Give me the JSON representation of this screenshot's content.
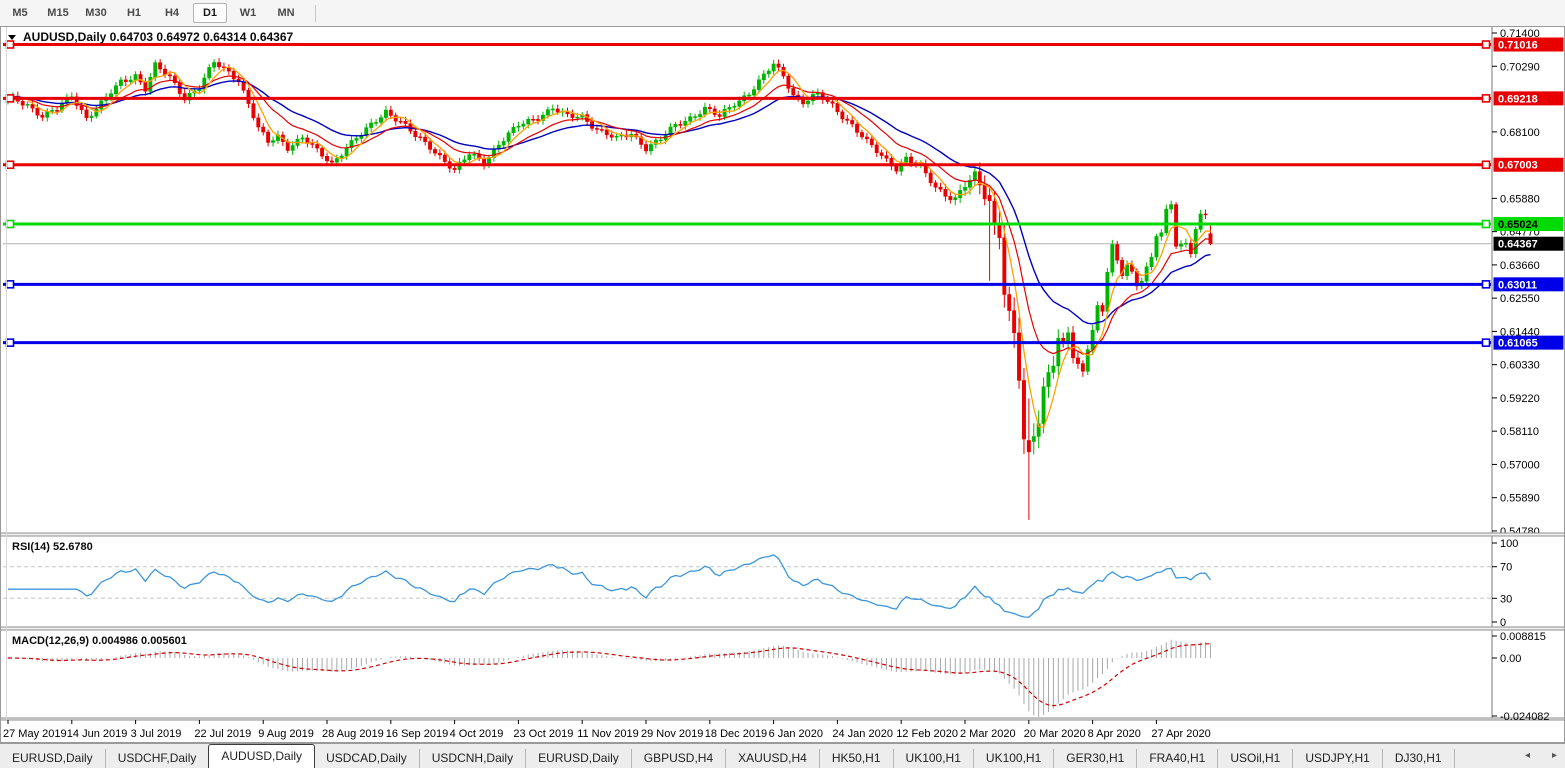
{
  "toolbar": {
    "timeframes": [
      "M5",
      "M15",
      "M30",
      "H1",
      "H4",
      "D1",
      "W1",
      "MN"
    ],
    "active_timeframe": "D1"
  },
  "chart": {
    "title_display": "AUDUSD,Daily  0.64703 0.64972 0.64314 0.64367",
    "symbol": "AUDUSD",
    "period": "Daily"
  },
  "chart_data": {
    "type": "candlestick",
    "symbol": "AUDUSD",
    "timeframe": "Daily",
    "current_bar": {
      "open": 0.64703,
      "high": 0.64972,
      "low": 0.64314,
      "close": 0.64367
    },
    "bars_count": 246,
    "price_axis": {
      "ticks": [
        "0.71400",
        "0.70290",
        "0.68100",
        "0.65880",
        "0.64770",
        "0.63660",
        "0.62550",
        "0.61440",
        "0.60330",
        "0.59220",
        "0.58110",
        "0.57000",
        "0.55890",
        "0.54780"
      ],
      "tick_values": [
        0.714,
        0.7029,
        0.681,
        0.6588,
        0.6477,
        0.6366,
        0.6255,
        0.6144,
        0.6033,
        0.5922,
        0.5811,
        0.57,
        0.5589,
        0.5478
      ]
    },
    "levels": [
      {
        "label": "0.71016",
        "price": 0.71016,
        "color": "#e80000",
        "text_color": "#ffffff",
        "kind": "resistance"
      },
      {
        "label": "0.69218",
        "price": 0.69218,
        "color": "#e80000",
        "text_color": "#ffffff",
        "kind": "resistance"
      },
      {
        "label": "0.67003",
        "price": 0.67003,
        "color": "#e80000",
        "text_color": "#ffffff",
        "kind": "resistance"
      },
      {
        "label": "0.65024",
        "price": 0.65024,
        "color": "#00dc00",
        "text_color": "#000000",
        "kind": "resistance"
      },
      {
        "label": "0.63011",
        "price": 0.63011,
        "color": "#0000e8",
        "text_color": "#ffffff",
        "kind": "support"
      },
      {
        "label": "0.61065",
        "price": 0.61065,
        "color": "#0000e8",
        "text_color": "#ffffff",
        "kind": "support"
      }
    ],
    "current_price": {
      "label": "0.64367",
      "price": 0.64367
    },
    "date_labels": [
      "27 May 2019",
      "14 Jun 2019",
      "3 Jul 2019",
      "22 Jul 2019",
      "9 Aug 2019",
      "28 Aug 2019",
      "16 Sep 2019",
      "4 Oct 2019",
      "23 Oct 2019",
      "11 Nov 2019",
      "29 Nov 2019",
      "18 Dec 2019",
      "6 Jan 2020",
      "24 Jan 2020",
      "12 Feb 2020",
      "2 Mar 2020",
      "20 Mar 2020",
      "8 Apr 2020",
      "27 Apr 2020"
    ],
    "price_path_anchors": [
      [
        0,
        0.6923
      ],
      [
        4,
        0.69
      ],
      [
        7,
        0.6865
      ],
      [
        10,
        0.6885
      ],
      [
        13,
        0.693
      ],
      [
        16,
        0.6858
      ],
      [
        19,
        0.6905
      ],
      [
        23,
        0.6975
      ],
      [
        26,
        0.7
      ],
      [
        28,
        0.6955
      ],
      [
        30,
        0.703
      ],
      [
        33,
        0.699
      ],
      [
        36,
        0.6925
      ],
      [
        39,
        0.696
      ],
      [
        42,
        0.704
      ],
      [
        45,
        0.701
      ],
      [
        47,
        0.6985
      ],
      [
        49,
        0.6905
      ],
      [
        51,
        0.682
      ],
      [
        53,
        0.6775
      ],
      [
        55,
        0.6795
      ],
      [
        57,
        0.676
      ],
      [
        60,
        0.679
      ],
      [
        63,
        0.6745
      ],
      [
        66,
        0.6705
      ],
      [
        69,
        0.676
      ],
      [
        73,
        0.6815
      ],
      [
        77,
        0.688
      ],
      [
        80,
        0.6845
      ],
      [
        83,
        0.6795
      ],
      [
        86,
        0.676
      ],
      [
        89,
        0.6715
      ],
      [
        91,
        0.668
      ],
      [
        94,
        0.6735
      ],
      [
        97,
        0.671
      ],
      [
        100,
        0.677
      ],
      [
        104,
        0.683
      ],
      [
        108,
        0.686
      ],
      [
        111,
        0.689
      ],
      [
        114,
        0.686
      ],
      [
        117,
        0.6862
      ],
      [
        120,
        0.682
      ],
      [
        124,
        0.6785
      ],
      [
        127,
        0.6805
      ],
      [
        130,
        0.6758
      ],
      [
        133,
        0.6785
      ],
      [
        136,
        0.683
      ],
      [
        139,
        0.6858
      ],
      [
        142,
        0.6888
      ],
      [
        145,
        0.686
      ],
      [
        148,
        0.6905
      ],
      [
        151,
        0.694
      ],
      [
        154,
        0.6995
      ],
      [
        156,
        0.7035
      ],
      [
        158,
        0.6998
      ],
      [
        160,
        0.6935
      ],
      [
        162,
        0.691
      ],
      [
        165,
        0.6933
      ],
      [
        168,
        0.6898
      ],
      [
        170,
        0.6865
      ],
      [
        172,
        0.6833
      ],
      [
        175,
        0.6775
      ],
      [
        178,
        0.673
      ],
      [
        181,
        0.669
      ],
      [
        183,
        0.6722
      ],
      [
        186,
        0.669
      ],
      [
        189,
        0.6625
      ],
      [
        193,
        0.6585
      ],
      [
        195,
        0.663
      ],
      [
        197,
        0.6655
      ],
      [
        199,
        0.6605
      ],
      [
        200,
        0.658
      ],
      [
        201,
        0.6495
      ],
      [
        202,
        0.6485
      ],
      [
        203,
        0.629
      ],
      [
        204,
        0.619
      ],
      [
        205,
        0.612
      ],
      [
        206,
        0.599
      ],
      [
        207,
        0.577
      ],
      [
        208,
        0.5742
      ],
      [
        209,
        0.58
      ],
      [
        210,
        0.5865
      ],
      [
        211,
        0.596
      ],
      [
        213,
        0.605
      ],
      [
        214,
        0.613
      ],
      [
        215,
        0.609
      ],
      [
        216,
        0.613
      ],
      [
        217,
        0.606
      ],
      [
        219,
        0.6
      ],
      [
        220,
        0.609
      ],
      [
        221,
        0.616
      ],
      [
        222,
        0.623
      ],
      [
        223,
        0.621
      ],
      [
        224,
        0.635
      ],
      [
        225,
        0.6435
      ],
      [
        226,
        0.637
      ],
      [
        227,
        0.6325
      ],
      [
        228,
        0.637
      ],
      [
        229,
        0.634
      ],
      [
        230,
        0.629
      ],
      [
        231,
        0.632
      ],
      [
        232,
        0.637
      ],
      [
        233,
        0.639
      ],
      [
        234,
        0.646
      ],
      [
        235,
        0.648
      ],
      [
        236,
        0.655
      ],
      [
        237,
        0.6555
      ],
      [
        238,
        0.6425
      ],
      [
        239,
        0.644
      ],
      [
        240,
        0.6435
      ],
      [
        241,
        0.64
      ],
      [
        242,
        0.6495
      ],
      [
        243,
        0.6545
      ],
      [
        244,
        0.653
      ],
      [
        245,
        0.6437
      ]
    ],
    "bar_overrides": [
      {
        "i": 200,
        "o": 0.6598,
        "h": 0.6626,
        "l": 0.6313,
        "c": 0.658
      },
      {
        "i": 208,
        "o": 0.578,
        "h": 0.592,
        "l": 0.5515,
        "c": 0.5742
      },
      {
        "i": 245,
        "o": 0.64703,
        "h": 0.64972,
        "l": 0.64314,
        "c": 0.64367
      }
    ],
    "moving_averages": [
      {
        "name": "fast",
        "type": "sma",
        "approx_period": 5,
        "color": "#ffa000"
      },
      {
        "name": "medium",
        "type": "ema",
        "approx_period": 13,
        "color": "#e80000"
      },
      {
        "name": "slow",
        "type": "ema",
        "approx_period": 25,
        "color": "#0000c0"
      }
    ],
    "indicators": {
      "rsi": {
        "display": "RSI(14) 52.6780",
        "period": 14,
        "value": 52.678,
        "axis": [
          "100",
          "70",
          "30",
          "0"
        ],
        "axis_values": [
          100,
          70,
          30,
          0
        ],
        "overbought": 70,
        "oversold": 30,
        "line_color": "#3c96dc"
      },
      "macd": {
        "display": "MACD(12,26,9) 0.004986 0.005601",
        "fast": 12,
        "slow": 26,
        "signal_period": 9,
        "main_value": 0.004986,
        "signal_value": 0.005601,
        "axis": [
          "0.008815",
          "0.00",
          "-0.024082"
        ],
        "axis_values": [
          0.008815,
          0,
          -0.024082
        ],
        "histogram_color": "#a8a8a8",
        "signal_color": "#d40000"
      }
    },
    "colors": {
      "up_candle": "#00b400",
      "down_candle": "#e80000",
      "price_line": "#b4b4b4",
      "price_label_bg": "#000000"
    }
  },
  "tabs": {
    "items": [
      "EURUSD,Daily",
      "USDCHF,Daily",
      "AUDUSD,Daily",
      "USDCAD,Daily",
      "USDCNH,Daily",
      "EURUSD,Daily",
      "GBPUSD,H4",
      "XAUUSD,H4",
      "HK50,H1",
      "UK100,H1",
      "UK100,H1",
      "GER30,H1",
      "FRA40,H1",
      "USOil,H1",
      "USDJPY,H1",
      "DJ30,H1"
    ],
    "active_index": 2,
    "scroll_left": "◂",
    "scroll_right": "▸"
  }
}
